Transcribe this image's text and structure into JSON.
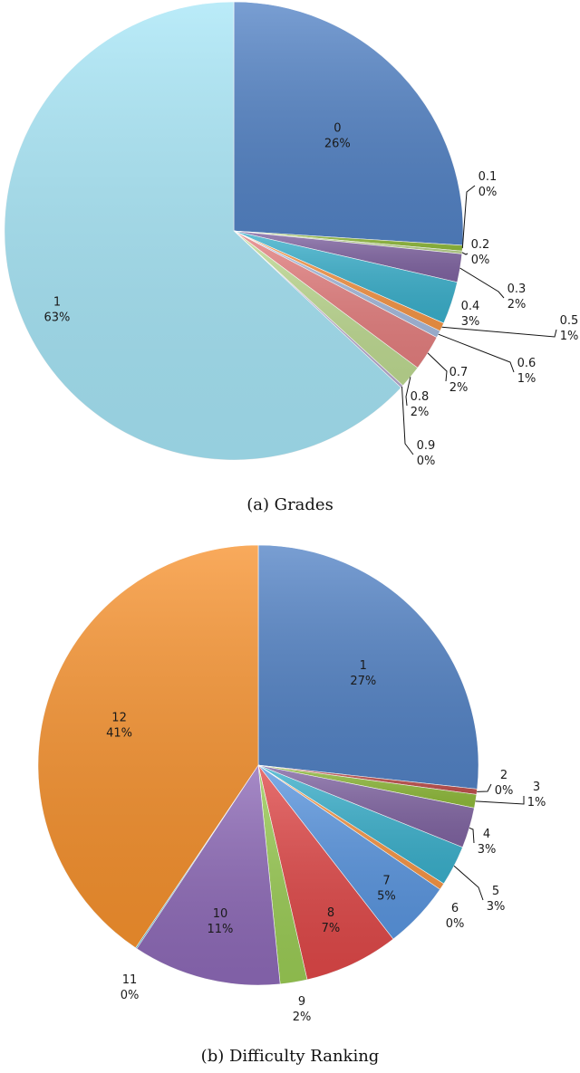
{
  "chart_data": [
    {
      "type": "pie",
      "caption": "(a) Grades",
      "slices": [
        {
          "category": "0",
          "pct_label": "26%",
          "value": 26,
          "color": "#5383c6"
        },
        {
          "category": "0.1",
          "pct_label": "0%",
          "value": 0.4,
          "color": "#8fba3a"
        },
        {
          "category": "0.2",
          "pct_label": "0%",
          "value": 0.2,
          "color": "#b9d38a"
        },
        {
          "category": "0.3",
          "pct_label": "2%",
          "value": 2,
          "color": "#8064a2"
        },
        {
          "category": "0.4",
          "pct_label": "3%",
          "value": 3,
          "color": "#3ab0cc"
        },
        {
          "category": "0.5",
          "pct_label": "1%",
          "value": 0.6,
          "color": "#f79646"
        },
        {
          "category": "0.6",
          "pct_label": "1%",
          "value": 0.5,
          "color": "#a7bcdf"
        },
        {
          "category": "0.7",
          "pct_label": "2%",
          "value": 2.5,
          "color": "#e57f7f"
        },
        {
          "category": "0.8",
          "pct_label": "2%",
          "value": 1.6,
          "color": "#bfdb92"
        },
        {
          "category": "0.9",
          "pct_label": "0%",
          "value": 0.2,
          "color": "#b9acd1"
        },
        {
          "category": "1",
          "pct_label": "63%",
          "value": 63,
          "color": "#a7e6f7"
        }
      ]
    },
    {
      "type": "pie",
      "caption": "(b) Difficulty Ranking",
      "slices": [
        {
          "category": "1",
          "pct_label": "27%",
          "value": 27,
          "color": "#5383c6"
        },
        {
          "category": "2",
          "pct_label": "0%",
          "value": 0.4,
          "color": "#c0504d"
        },
        {
          "category": "3",
          "pct_label": "1%",
          "value": 1,
          "color": "#8fba3a"
        },
        {
          "category": "4",
          "pct_label": "3%",
          "value": 3,
          "color": "#8064a2"
        },
        {
          "category": "5",
          "pct_label": "3%",
          "value": 3,
          "color": "#3ab0cc"
        },
        {
          "category": "6",
          "pct_label": "0%",
          "value": 0.5,
          "color": "#f79646"
        },
        {
          "category": "7",
          "pct_label": "5%",
          "value": 5,
          "color": "#5a96e0"
        },
        {
          "category": "8",
          "pct_label": "7%",
          "value": 7,
          "color": "#e04848"
        },
        {
          "category": "9",
          "pct_label": "2%",
          "value": 2,
          "color": "#9bcc55"
        },
        {
          "category": "10",
          "pct_label": "11%",
          "value": 11,
          "color": "#8e6ab8"
        },
        {
          "category": "11",
          "pct_label": "0%",
          "value": 0.1,
          "color": "#4bacc6"
        },
        {
          "category": "12",
          "pct_label": "41%",
          "value": 41,
          "color": "#f7922e"
        }
      ]
    }
  ]
}
